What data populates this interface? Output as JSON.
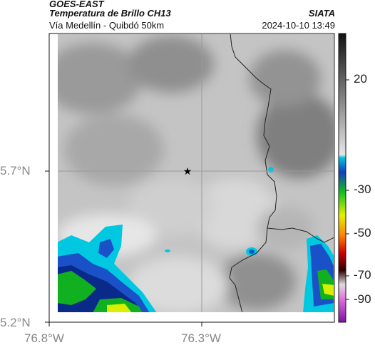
{
  "header": {
    "satellite": "GOES-EAST",
    "product": "Temperatura de Brillo CH13",
    "region": "Vía Medellín - Quibdó 50km",
    "organization": "SIATA",
    "timestamp": "2024-10-10 13:49"
  },
  "axes": {
    "y_ticks": [
      "5.7°N",
      "5.2°N"
    ],
    "x_ticks": [
      "76.8°W",
      "76.3°W"
    ]
  },
  "colorbar": {
    "labels": [
      "20",
      "-30",
      "-50",
      "-70",
      "-90"
    ],
    "values": [
      20,
      -30,
      -50,
      -70,
      -90
    ],
    "unit": ""
  },
  "map": {
    "marker_icon": "star-marker-icon",
    "gridline_color": "#9a9a9a",
    "border_color": "#222222"
  }
}
